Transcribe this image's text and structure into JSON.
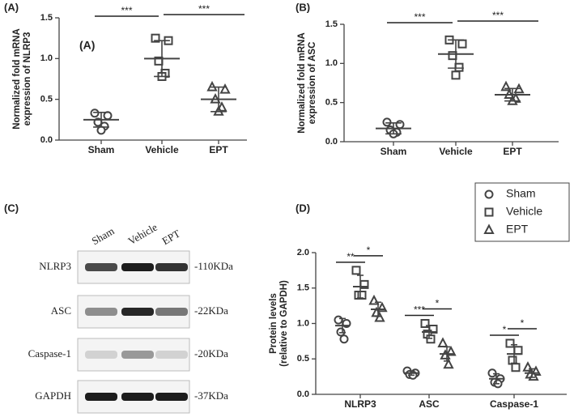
{
  "chart_data": [
    {
      "type": "dot_plot",
      "panel_label": "(A)",
      "inset_label": "(A)",
      "y_label": [
        "Normalized fold mRNA",
        "expression of NLRP3"
      ],
      "categories": [
        "Sham",
        "Vehicle",
        "EPT"
      ],
      "markers": [
        "circle",
        "square",
        "triangle"
      ],
      "points": [
        [
          0.33,
          0.3,
          0.22,
          0.17,
          0.12
        ],
        [
          1.25,
          1.22,
          0.97,
          0.82,
          0.78
        ],
        [
          0.65,
          0.62,
          0.5,
          0.4,
          0.35
        ]
      ],
      "means": [
        0.25,
        1.0,
        0.5
      ],
      "sd": [
        0.09,
        0.22,
        0.15
      ],
      "ylim": [
        0,
        1.5
      ],
      "yticks": [
        {
          "value": 0,
          "label": "0.0"
        },
        0.5,
        {
          "value": 1,
          "label": "1.0"
        },
        1.5
      ],
      "annotations": [
        "***",
        "***"
      ],
      "color": "#444444"
    },
    {
      "type": "dot_plot",
      "panel_label": "(B)",
      "y_label": [
        "Normalized fold mRNA",
        "expression of ASC"
      ],
      "categories": [
        "Sham",
        "Vehicle",
        "EPT"
      ],
      "markers": [
        "circle",
        "square",
        "triangle"
      ],
      "points": [
        [
          0.25,
          0.22,
          0.15,
          0.12,
          0.1
        ],
        [
          1.3,
          1.25,
          1.1,
          0.95,
          0.85
        ],
        [
          0.7,
          0.67,
          0.6,
          0.55,
          0.52
        ]
      ],
      "means": [
        0.17,
        1.12,
        0.6
      ],
      "sd": [
        0.07,
        0.18,
        0.08
      ],
      "ylim": [
        0,
        1.5
      ],
      "yticks": [
        {
          "value": 0,
          "label": "0.0"
        },
        0.5,
        {
          "value": 1,
          "label": "1.0"
        },
        1.5
      ],
      "annotations": [
        "***",
        "***"
      ],
      "color": "#444444"
    },
    {
      "type": "blot",
      "panel_label": "(C)",
      "lanes": [
        "Sham",
        "Vehicle",
        "EPT"
      ],
      "rows": [
        {
          "protein": "NLRP3",
          "size": "-110KDa"
        },
        {
          "protein": "ASC",
          "size": "-22KDa"
        },
        {
          "protein": "Caspase-1",
          "size": "-20KDa"
        },
        {
          "protein": "GAPDH",
          "size": "-37KDa"
        }
      ]
    },
    {
      "type": "grouped_dot_plot",
      "panel_label": "(D)",
      "y_label": [
        "Protein levels",
        "(relative to GAPDH)"
      ],
      "categories": [
        "NLRP3",
        "ASC",
        "Caspase-1"
      ],
      "series": [
        {
          "name": "Sham",
          "marker": "circle",
          "points": [
            [
              1.05,
              1.0,
              0.88,
              0.78
            ],
            [
              0.33,
              0.3,
              0.28,
              0.27
            ],
            [
              0.3,
              0.22,
              0.17,
              0.15
            ]
          ],
          "means": [
            0.97,
            0.3,
            0.22
          ],
          "sd": [
            0.1,
            0.03,
            0.07
          ]
        },
        {
          "name": "Vehicle",
          "marker": "square",
          "points": [
            [
              1.75,
              1.55,
              1.4,
              1.4
            ],
            [
              1.0,
              0.92,
              0.85,
              0.78
            ],
            [
              0.72,
              0.62,
              0.48,
              0.38
            ]
          ],
          "means": [
            1.52,
            0.88,
            0.57
          ],
          "sd": [
            0.16,
            0.09,
            0.13
          ]
        },
        {
          "name": "EPT",
          "marker": "triangle",
          "points": [
            [
              1.32,
              1.22,
              1.15,
              1.08
            ],
            [
              0.72,
              0.6,
              0.55,
              0.42
            ],
            [
              0.38,
              0.32,
              0.28,
              0.25
            ]
          ],
          "means": [
            1.2,
            0.57,
            0.3
          ],
          "sd": [
            0.1,
            0.1,
            0.06
          ]
        }
      ],
      "ylim": [
        0,
        2
      ],
      "yticks": [
        {
          "value": 0,
          "label": "0.0"
        },
        0.5,
        {
          "value": 1,
          "label": "1.0"
        },
        1.5,
        {
          "value": 2,
          "label": "2.0"
        }
      ],
      "annotations": [
        [
          "**",
          "*"
        ],
        [
          "***",
          "*"
        ],
        [
          "*",
          "*"
        ]
      ],
      "legend": "top-right",
      "color": "#444444"
    }
  ]
}
